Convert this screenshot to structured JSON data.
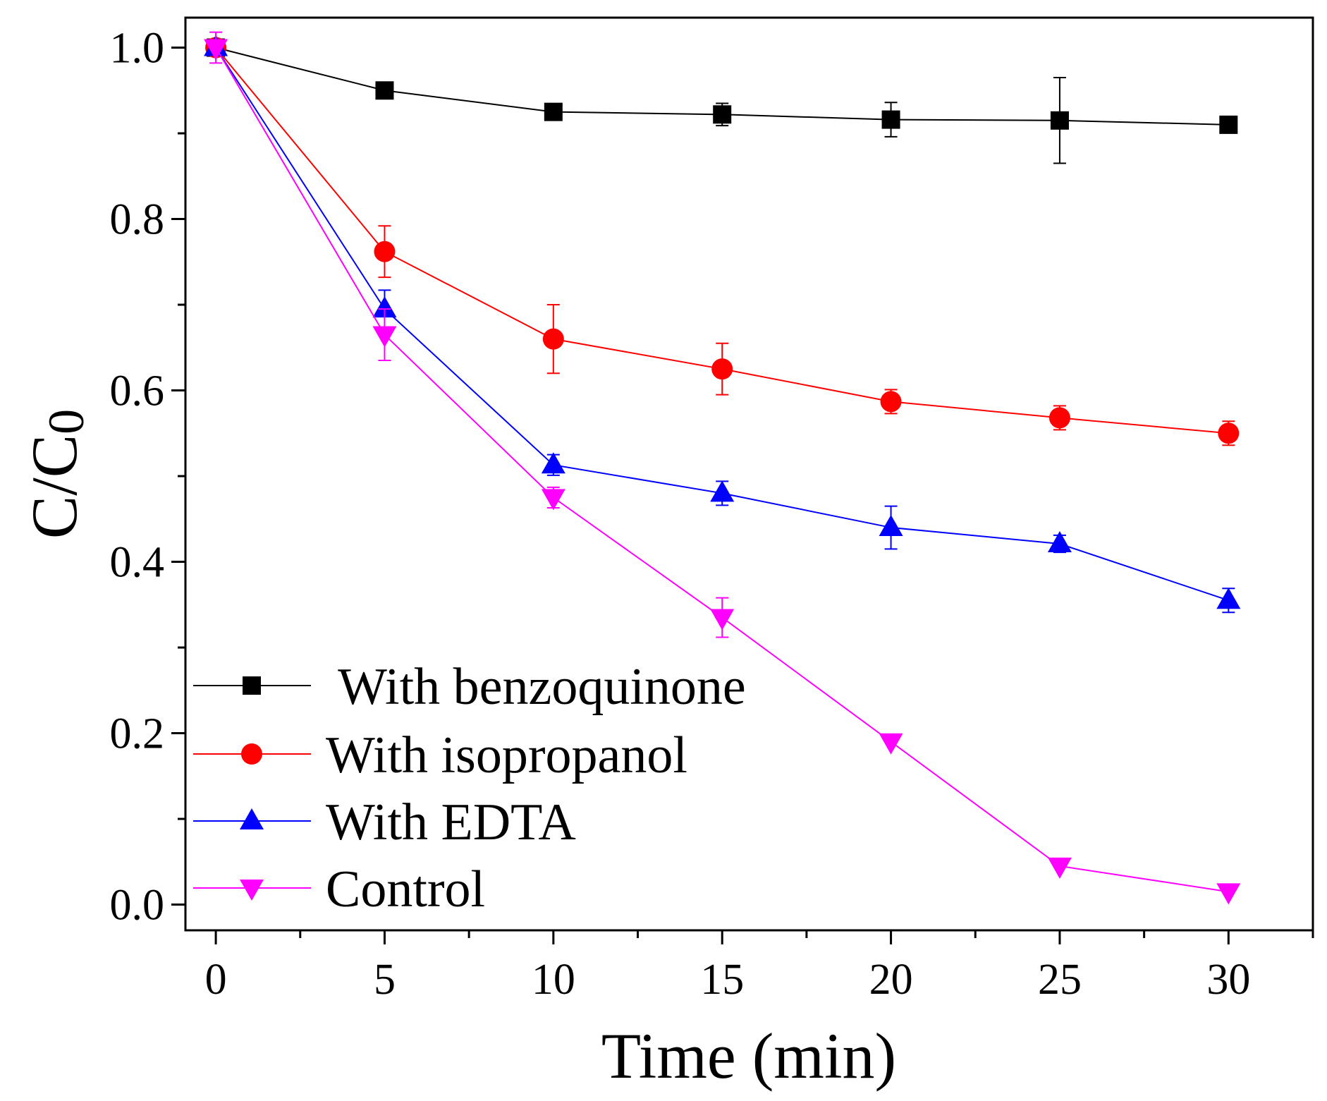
{
  "chart_data": {
    "type": "line",
    "title": "",
    "xlabel": "Time (min)",
    "ylabel_main": "C/C",
    "ylabel_sub": "0",
    "xlim": [
      -0.9,
      32.5
    ],
    "ylim": [
      -0.03,
      1.035
    ],
    "x_ticks": [
      0,
      5,
      10,
      15,
      20,
      25,
      30
    ],
    "x_tick_labels": [
      "0",
      "5",
      "10",
      "15",
      "20",
      "25",
      "30"
    ],
    "y_ticks": [
      0.0,
      0.2,
      0.4,
      0.6,
      0.8,
      1.0
    ],
    "y_tick_labels": [
      "0.0",
      "0.2",
      "0.4",
      "0.6",
      "0.8",
      "1.0"
    ],
    "x_minor_ticks": [
      2.5,
      7.5,
      12.5,
      17.5,
      22.5,
      27.5,
      32.5
    ],
    "y_minor_ticks": [
      0.1,
      0.3,
      0.5,
      0.7,
      0.9
    ],
    "grid": false,
    "legend_position": "bottom-left",
    "x": [
      0,
      5,
      10,
      15,
      20,
      25,
      30
    ],
    "series": [
      {
        "name": " With benzoquinone",
        "color": "#000000",
        "marker": "square",
        "values": [
          1.0,
          0.95,
          0.925,
          0.922,
          0.916,
          0.915,
          0.91
        ],
        "errors": [
          0.0,
          0.0,
          0.0,
          0.013,
          0.02,
          0.05,
          0.0
        ]
      },
      {
        "name": "With isopropanol",
        "color": "#ff0000",
        "marker": "circle",
        "values": [
          1.0,
          0.762,
          0.66,
          0.625,
          0.587,
          0.568,
          0.55
        ],
        "errors": [
          0.0,
          0.03,
          0.04,
          0.03,
          0.014,
          0.014,
          0.014
        ]
      },
      {
        "name": "With EDTA",
        "color": "#0000ff",
        "marker": "triangle-up",
        "values": [
          1.0,
          0.695,
          0.513,
          0.48,
          0.44,
          0.421,
          0.355
        ],
        "errors": [
          0.0,
          0.022,
          0.012,
          0.014,
          0.025,
          0.01,
          0.014
        ]
      },
      {
        "name": "Control",
        "color": "#ff00ff",
        "marker": "triangle-down",
        "values": [
          1.0,
          0.665,
          0.475,
          0.335,
          0.19,
          0.045,
          0.015
        ],
        "errors": [
          0.018,
          0.03,
          0.012,
          0.023,
          0.0,
          0.0,
          0.0
        ]
      }
    ]
  }
}
